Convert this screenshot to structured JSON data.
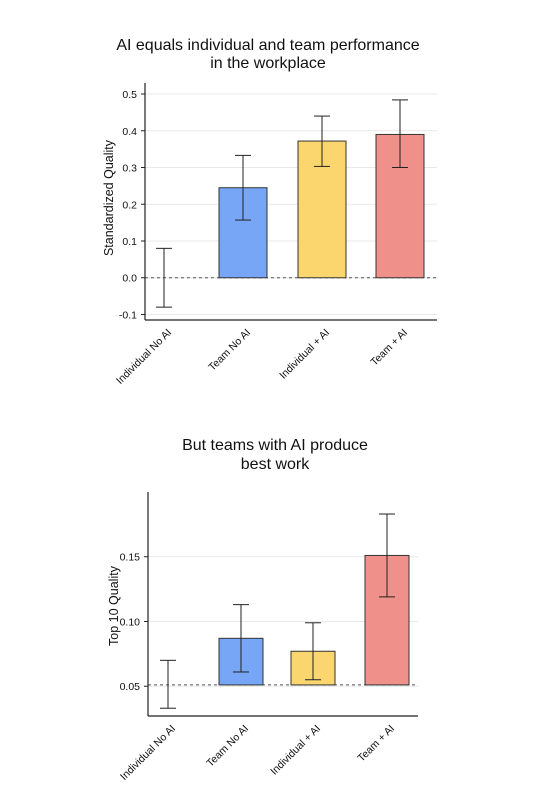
{
  "chart_data": [
    {
      "type": "bar",
      "title": "AI equals individual and team performance in the workplace",
      "title_lines": [
        "AI equals individual and team performance",
        "in the workplace"
      ],
      "ylabel": "Standardized Quality",
      "xlabel": "",
      "categories": [
        "Individual No AI",
        "Team No AI",
        "Individual + AI",
        "Team + AI"
      ],
      "values": [
        0.0,
        0.245,
        0.372,
        0.39
      ],
      "error_low": [
        -0.08,
        0.157,
        0.303,
        0.3
      ],
      "error_high": [
        0.08,
        0.333,
        0.44,
        0.484
      ],
      "colors": [
        "#ffffff",
        "#76a6f5",
        "#fbd66f",
        "#ef908a"
      ],
      "ylim": [
        -0.115,
        0.53
      ],
      "yticks": [
        "-0.1",
        "0.0",
        "0.1",
        "0.2",
        "0.3",
        "0.4",
        "0.5"
      ],
      "reference_line": 0.0,
      "grid": true
    },
    {
      "type": "bar",
      "title": "But teams with AI produce best work",
      "title_lines": [
        "But teams with AI produce",
        "best work"
      ],
      "ylabel": "Top 10 Quality",
      "xlabel": "",
      "categories": [
        "Individual No AI",
        "Team No AI",
        "Individual + AI",
        "Team + AI"
      ],
      "values": [
        0.051,
        0.087,
        0.077,
        0.151
      ],
      "error_low": [
        0.033,
        0.061,
        0.055,
        0.119
      ],
      "error_high": [
        0.07,
        0.113,
        0.099,
        0.183
      ],
      "colors": [
        "#ffffff",
        "#76a6f5",
        "#fbd66f",
        "#ef908a"
      ],
      "ylim": [
        0.027,
        0.2
      ],
      "yticks": [
        "0.05",
        "0.10",
        "0.15"
      ],
      "reference_line": 0.051,
      "grid": true
    }
  ]
}
